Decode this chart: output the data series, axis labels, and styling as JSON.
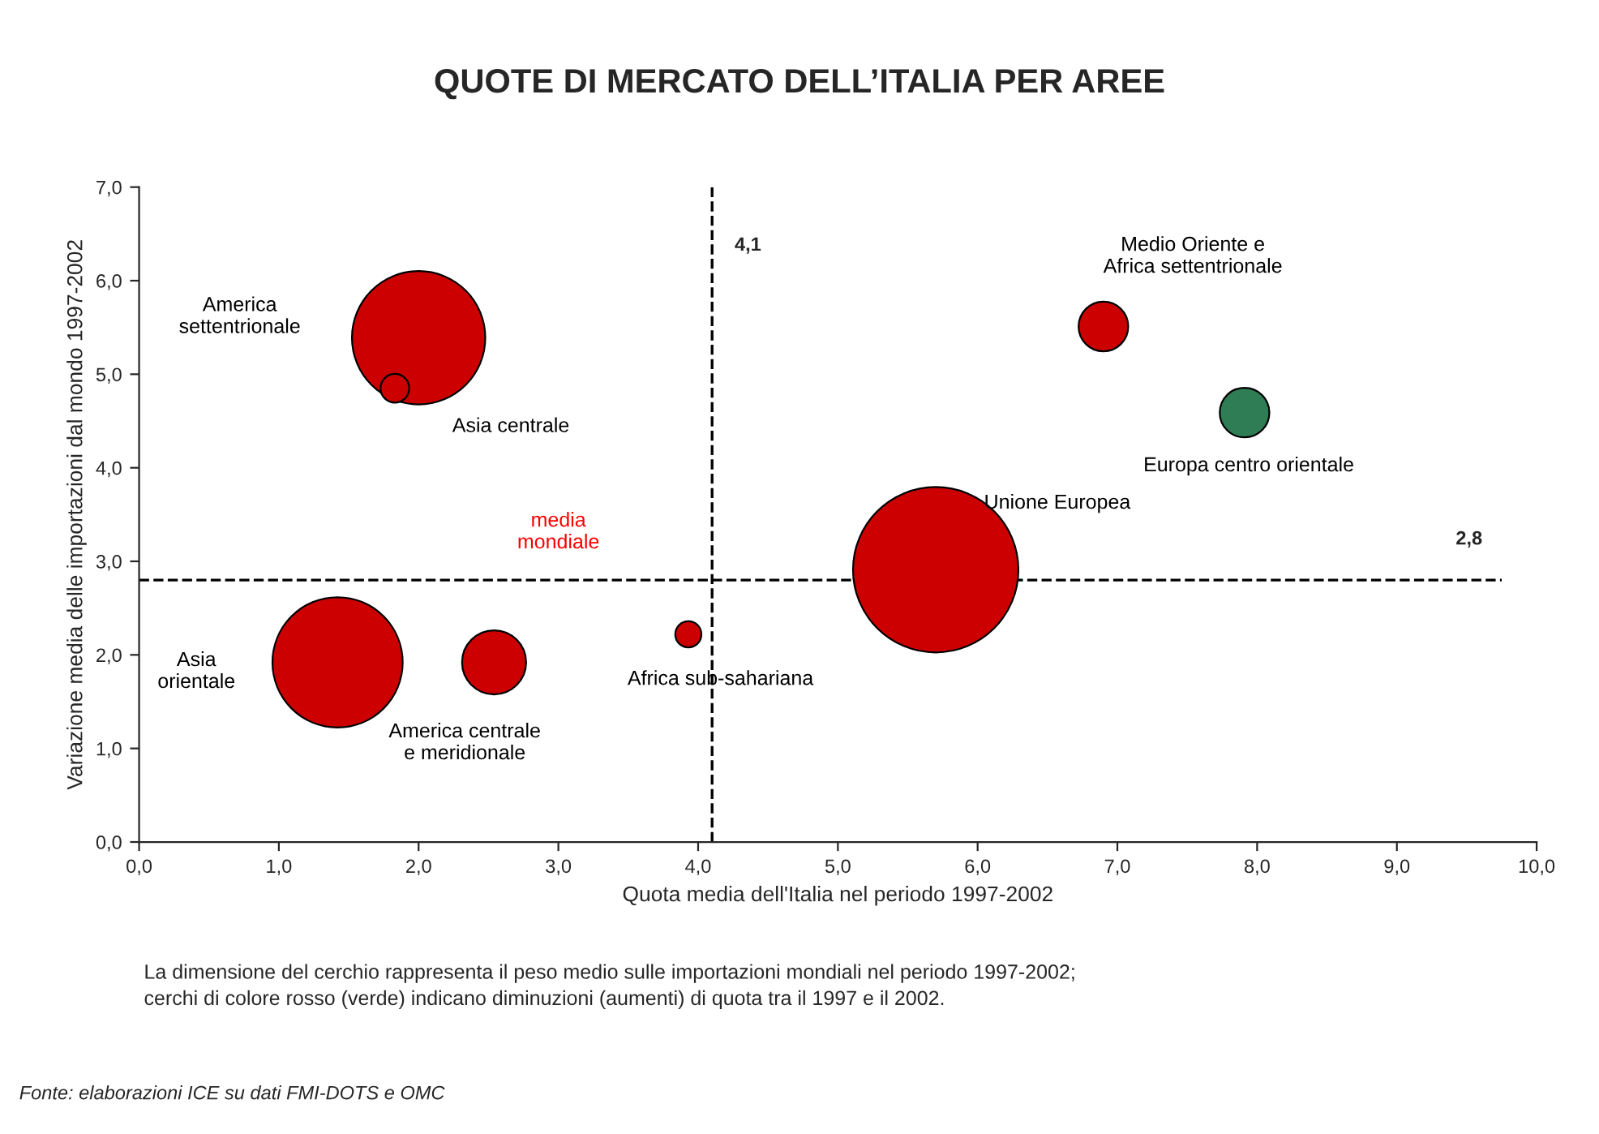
{
  "chart_data": {
    "type": "bubble",
    "title": "QUOTE DI MERCATO DELL’ITALIA PER AREE",
    "xlabel": "Quota media dell'Italia nel periodo 1997-2002",
    "ylabel": "Variazione media delle importazioni dal mondo 1997-2002",
    "x": [
      2.0,
      1.83,
      6.9,
      7.91,
      5.7,
      1.42,
      2.54,
      3.93
    ],
    "values": [
      5.39,
      4.85,
      5.51,
      4.59,
      2.91,
      1.92,
      1.92,
      2.22
    ],
    "sizes": [
      0.65,
      0.03,
      0.09,
      0.09,
      1,
      0.62,
      0.15,
      0.025
    ],
    "colors": [
      "#cc0000",
      "#cc0000",
      "#cc0000",
      "#2e7d55",
      "#cc0000",
      "#cc0000",
      "#cc0000",
      "#cc0000"
    ],
    "xlim": [
      0,
      10
    ],
    "ylim": [
      0,
      7
    ],
    "xticks": [
      {
        "value": 0,
        "label": "0,0"
      },
      {
        "value": 1,
        "label": "1,0"
      },
      {
        "value": 2,
        "label": "2,0"
      },
      {
        "value": 3,
        "label": "3,0"
      },
      {
        "value": 4,
        "label": "4,0"
      },
      {
        "value": 5,
        "label": "5,0"
      },
      {
        "value": 6,
        "label": "6,0"
      },
      {
        "value": 7,
        "label": "7,0"
      },
      {
        "value": 8,
        "label": "8,0"
      },
      {
        "value": 9,
        "label": "9,0"
      },
      {
        "value": 10,
        "label": "10,0"
      }
    ],
    "yticks": [
      {
        "value": 0,
        "label": "0,0"
      },
      {
        "value": 1,
        "label": "1,0"
      },
      {
        "value": 2,
        "label": "2,0"
      },
      {
        "value": 3,
        "label": "3,0"
      },
      {
        "value": 4,
        "label": "4,0"
      },
      {
        "value": 5,
        "label": "5,0"
      },
      {
        "value": 6,
        "label": "6,0"
      },
      {
        "value": 7,
        "label": "7,0"
      }
    ],
    "ref_lines": [
      {
        "axis": "x",
        "value": 4.1,
        "label": "4,1",
        "line_style": "dashed"
      },
      {
        "axis": "y",
        "value": 2.8,
        "label": "2,8",
        "line_style": "dashed"
      }
    ],
    "annotations": [
      "America\nsettentrionale",
      "Asia centrale",
      "Medio Oriente e\nAfrica settentrionale",
      "Europa centro orientale",
      "Unione Europea",
      "Asia\norientale",
      "America centrale\ne meridionale",
      "Africa sub-sahariana",
      "media\nmondiale",
      "La dimensione del cerchio rappresenta il peso medio sulle importazioni mondiali nel periodo 1997-2002;\ncerchi di colore rosso (verde) indicano diminuzioni (aumenti) di quota tra il 1997 e il 2002.",
      "Fonte: elaborazioni ICE su dati FMI-DOTS e OMC"
    ],
    "grid": false,
    "legend": false
  }
}
